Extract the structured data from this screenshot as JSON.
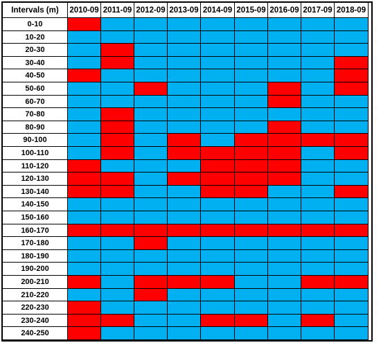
{
  "chart_data": {
    "type": "heatmap",
    "row_header_label": "Intervals (m)",
    "columns": [
      "2010-09",
      "2011-09",
      "2012-09",
      "2013-09",
      "2014-09",
      "2015-09",
      "2016-09",
      "2017-09",
      "2018-09"
    ],
    "rows": [
      "0-10",
      "10-20",
      "20-30",
      "30-40",
      "40-50",
      "50-60",
      "60-70",
      "70-80",
      "80-90",
      "90-100",
      "100-110",
      "110-120",
      "120-130",
      "130-140",
      "140-150",
      "150-160",
      "160-170",
      "170-180",
      "180-190",
      "190-200",
      "200-210",
      "210-220",
      "220-230",
      "230-240",
      "240-250"
    ],
    "values": [
      [
        1,
        0,
        0,
        0,
        0,
        0,
        0,
        0,
        0
      ],
      [
        0,
        0,
        0,
        0,
        0,
        0,
        0,
        0,
        0
      ],
      [
        0,
        1,
        0,
        0,
        0,
        0,
        0,
        0,
        0
      ],
      [
        0,
        1,
        0,
        0,
        0,
        0,
        0,
        0,
        1
      ],
      [
        1,
        0,
        0,
        0,
        0,
        0,
        0,
        0,
        1
      ],
      [
        0,
        0,
        1,
        0,
        0,
        0,
        1,
        0,
        1
      ],
      [
        0,
        0,
        0,
        0,
        0,
        0,
        1,
        0,
        0
      ],
      [
        0,
        1,
        0,
        0,
        0,
        0,
        0,
        0,
        0
      ],
      [
        0,
        1,
        0,
        0,
        0,
        0,
        1,
        0,
        0
      ],
      [
        0,
        1,
        0,
        1,
        0,
        1,
        1,
        1,
        1
      ],
      [
        0,
        1,
        0,
        1,
        1,
        1,
        1,
        0,
        1
      ],
      [
        1,
        0,
        0,
        0,
        1,
        1,
        1,
        0,
        0
      ],
      [
        1,
        1,
        0,
        1,
        1,
        1,
        1,
        0,
        0
      ],
      [
        1,
        1,
        0,
        0,
        1,
        1,
        0,
        0,
        1
      ],
      [
        0,
        0,
        0,
        0,
        0,
        0,
        0,
        0,
        0
      ],
      [
        0,
        0,
        0,
        0,
        0,
        0,
        0,
        0,
        0
      ],
      [
        1,
        1,
        1,
        1,
        1,
        1,
        1,
        1,
        1
      ],
      [
        0,
        0,
        1,
        0,
        0,
        0,
        0,
        0,
        0
      ],
      [
        0,
        0,
        0,
        0,
        0,
        0,
        0,
        0,
        0
      ],
      [
        0,
        0,
        0,
        0,
        0,
        0,
        0,
        0,
        0
      ],
      [
        1,
        0,
        1,
        1,
        1,
        0,
        0,
        1,
        1
      ],
      [
        0,
        0,
        1,
        0,
        0,
        0,
        0,
        0,
        0
      ],
      [
        1,
        0,
        0,
        0,
        0,
        0,
        0,
        0,
        0
      ],
      [
        1,
        1,
        0,
        0,
        1,
        1,
        0,
        1,
        0
      ],
      [
        1,
        0,
        0,
        0,
        0,
        0,
        0,
        0,
        0
      ]
    ],
    "colors": {
      "0": "#00B0F0",
      "1": "#FF0000",
      "header": "#FFFFFF",
      "grid": "#000000"
    }
  }
}
